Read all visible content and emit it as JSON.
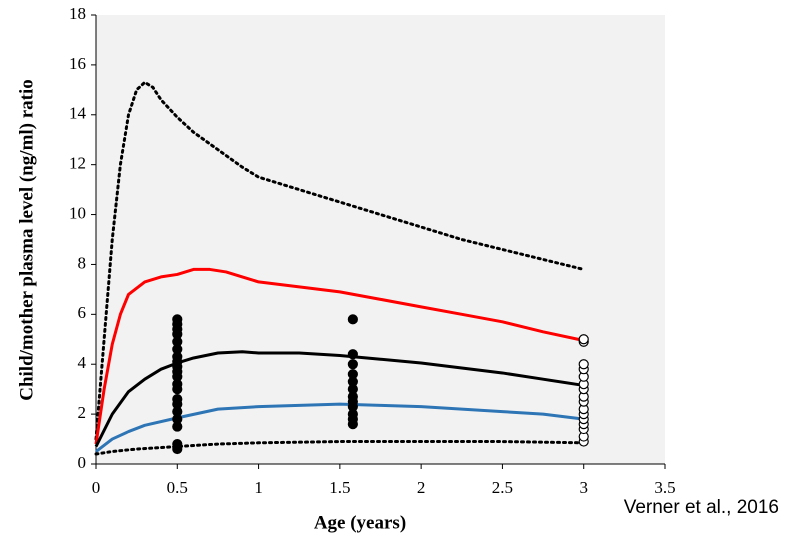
{
  "chart_data": {
    "type": "line",
    "x_label": "Age (years)",
    "y_label": "Child/mother plasma level (ng/ml) ratio",
    "annotation": "Verner et al., 2016",
    "xlim": [
      0,
      3.5
    ],
    "xticks": [
      0,
      0.5,
      1,
      1.5,
      2,
      2.5,
      3,
      3.5
    ],
    "ylim": [
      0,
      18
    ],
    "yticks": [
      0,
      2,
      4,
      6,
      8,
      10,
      12,
      14,
      16,
      18
    ],
    "background": "#f2f2f2",
    "series": [
      {
        "kind": "line",
        "style": "dotted",
        "color": "#000000",
        "x": [
          0,
          0.05,
          0.1,
          0.15,
          0.2,
          0.25,
          0.3,
          0.35,
          0.4,
          0.5,
          0.6,
          0.75,
          0.9,
          1,
          1.25,
          1.5,
          1.75,
          2,
          2.25,
          2.5,
          2.75,
          3
        ],
        "values": [
          1,
          5,
          9,
          12,
          14,
          15,
          15.3,
          15.1,
          14.6,
          13.9,
          13.3,
          12.6,
          11.9,
          11.5,
          11,
          10.5,
          10,
          9.5,
          9,
          8.6,
          8.2,
          7.8
        ]
      },
      {
        "kind": "line",
        "style": "solid",
        "color": "#ff0000",
        "x": [
          0,
          0.05,
          0.1,
          0.15,
          0.2,
          0.3,
          0.4,
          0.5,
          0.6,
          0.7,
          0.8,
          0.9,
          1,
          1.25,
          1.5,
          1.75,
          2,
          2.25,
          2.5,
          2.75,
          3
        ],
        "values": [
          0.8,
          3,
          4.8,
          6,
          6.8,
          7.3,
          7.5,
          7.6,
          7.8,
          7.8,
          7.7,
          7.5,
          7.3,
          7.1,
          6.9,
          6.6,
          6.3,
          6,
          5.7,
          5.3,
          4.95
        ]
      },
      {
        "kind": "line",
        "style": "solid",
        "color": "#000000",
        "x": [
          0,
          0.1,
          0.2,
          0.3,
          0.4,
          0.5,
          0.6,
          0.75,
          0.9,
          1,
          1.25,
          1.5,
          1.75,
          2,
          2.25,
          2.5,
          2.75,
          3
        ],
        "values": [
          0.7,
          2,
          2.9,
          3.4,
          3.8,
          4.05,
          4.25,
          4.45,
          4.5,
          4.45,
          4.45,
          4.35,
          4.2,
          4.05,
          3.85,
          3.65,
          3.4,
          3.15
        ]
      },
      {
        "kind": "line",
        "style": "solid",
        "color": "#2e75b6",
        "x": [
          0,
          0.1,
          0.2,
          0.3,
          0.5,
          0.75,
          1,
          1.25,
          1.5,
          1.75,
          2,
          2.25,
          2.5,
          2.75,
          3
        ],
        "values": [
          0.5,
          1,
          1.3,
          1.55,
          1.85,
          2.2,
          2.3,
          2.35,
          2.4,
          2.35,
          2.3,
          2.2,
          2.1,
          2,
          1.8
        ]
      },
      {
        "kind": "line",
        "style": "dotted",
        "color": "#000000",
        "x": [
          0,
          0.1,
          0.25,
          0.5,
          0.75,
          1,
          1.5,
          2,
          2.5,
          3
        ],
        "values": [
          0.4,
          0.5,
          0.6,
          0.7,
          0.8,
          0.85,
          0.9,
          0.9,
          0.9,
          0.85
        ]
      },
      {
        "kind": "scatter",
        "marker": "filled",
        "color": "#000000",
        "x": [
          0.5,
          0.5,
          0.5,
          0.5,
          0.5,
          0.5,
          0.5,
          0.5,
          0.5,
          0.5,
          0.5,
          0.5,
          0.5,
          0.5,
          0.5,
          0.5,
          0.5,
          0.5,
          0.5,
          0.5
        ],
        "values": [
          0.6,
          0.8,
          1.5,
          1.8,
          2.1,
          2.4,
          2.6,
          3.0,
          3.2,
          3.5,
          3.7,
          3.9,
          4.1,
          4.3,
          4.6,
          4.9,
          5.2,
          5.4,
          5.6,
          5.8
        ]
      },
      {
        "kind": "scatter",
        "marker": "filled",
        "color": "#000000",
        "x": [
          1.58,
          1.58,
          1.58,
          1.58,
          1.58,
          1.58,
          1.58,
          1.58,
          1.58,
          1.58,
          1.58,
          1.58
        ],
        "values": [
          1.6,
          1.8,
          2.0,
          2.3,
          2.5,
          2.7,
          3.0,
          3.3,
          3.6,
          4.0,
          4.4,
          5.8
        ]
      },
      {
        "kind": "scatter",
        "marker": "open",
        "color": "#000000",
        "x": [
          3,
          3,
          3,
          3,
          3,
          3,
          3,
          3,
          3,
          3,
          3,
          3,
          3,
          3,
          3,
          3
        ],
        "values": [
          0.9,
          1.1,
          1.4,
          1.6,
          1.8,
          2.0,
          2.2,
          2.5,
          2.7,
          3.0,
          3.2,
          3.5,
          3.8,
          4.0,
          4.9,
          5.0
        ]
      }
    ]
  }
}
